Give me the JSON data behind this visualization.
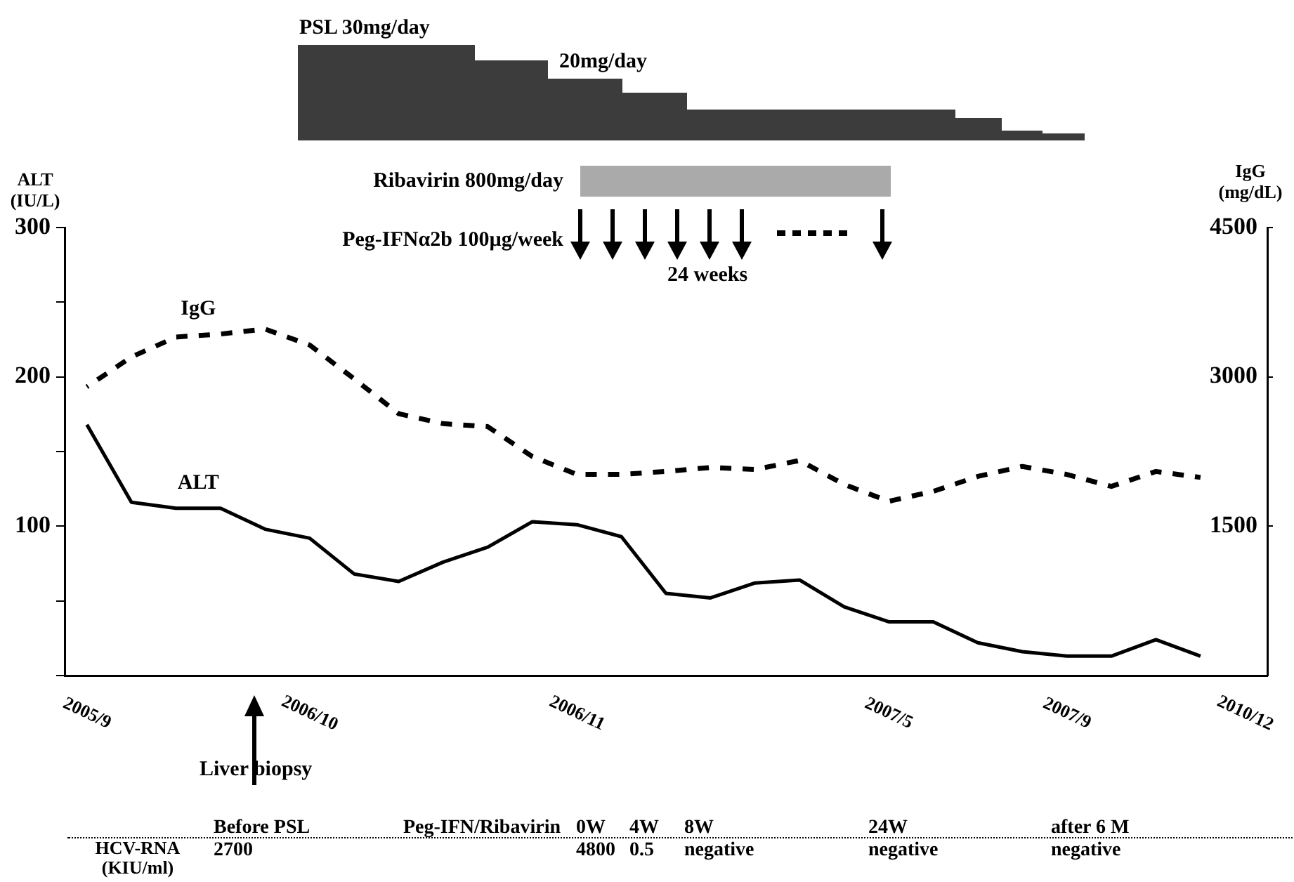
{
  "chart_data": {
    "type": "line",
    "marker": "none",
    "ylabel": "ALT (IU/L)",
    "y2label": "IgG (mg/dL)",
    "categories": [
      "2005/9",
      null,
      null,
      null,
      null,
      "2006/10",
      null,
      null,
      null,
      null,
      null,
      "2006/11",
      null,
      null,
      null,
      null,
      null,
      null,
      "2007/5",
      null,
      null,
      null,
      "2007/9",
      null,
      null,
      null,
      "2010/12"
    ],
    "ylim": [
      0,
      300
    ],
    "yticks": [
      {
        "value": 0,
        "label": null
      },
      {
        "value": 50,
        "label": null
      },
      100,
      {
        "value": 150,
        "label": null
      },
      200,
      {
        "value": 250,
        "label": null
      },
      300
    ],
    "y2lim": [
      0,
      4500
    ],
    "y2ticks": [
      1500,
      3000,
      4500
    ],
    "series": [
      {
        "name": "ALT",
        "color": "#000000",
        "line_style": "solid",
        "values": [
          168,
          116,
          112,
          112,
          98,
          92,
          68,
          63,
          76,
          86,
          103,
          101,
          93,
          55,
          52,
          62,
          64,
          46,
          36,
          36,
          22,
          16,
          13,
          13,
          24,
          13,
          null
        ]
      },
      {
        "name": "IgG",
        "color": "#000000",
        "line_style": "dashed",
        "axis": "y2",
        "values": [
          2900,
          3200,
          3400,
          3430,
          3480,
          3320,
          2980,
          2630,
          2530,
          2500,
          2200,
          2020,
          2020,
          2050,
          2090,
          2070,
          2160,
          1920,
          1750,
          1850,
          2000,
          2100,
          2020,
          1900,
          2050,
          1990,
          null
        ]
      }
    ],
    "annotations": [
      "PSL 30mg/day",
      "20mg/day",
      "Ribavirin 800mg/day",
      "Peg-IFNα2b 100µg/week",
      "24 weeks",
      "Liver biopsy",
      "HCV-RNA (KIU/ml)",
      "Before PSL",
      "2700",
      "Peg-IFN/Ribavirin",
      "0W",
      "4800",
      "4W",
      "0.5",
      "8W",
      "negative",
      "24W",
      "negative",
      "after 6 M",
      "negative"
    ]
  }
}
